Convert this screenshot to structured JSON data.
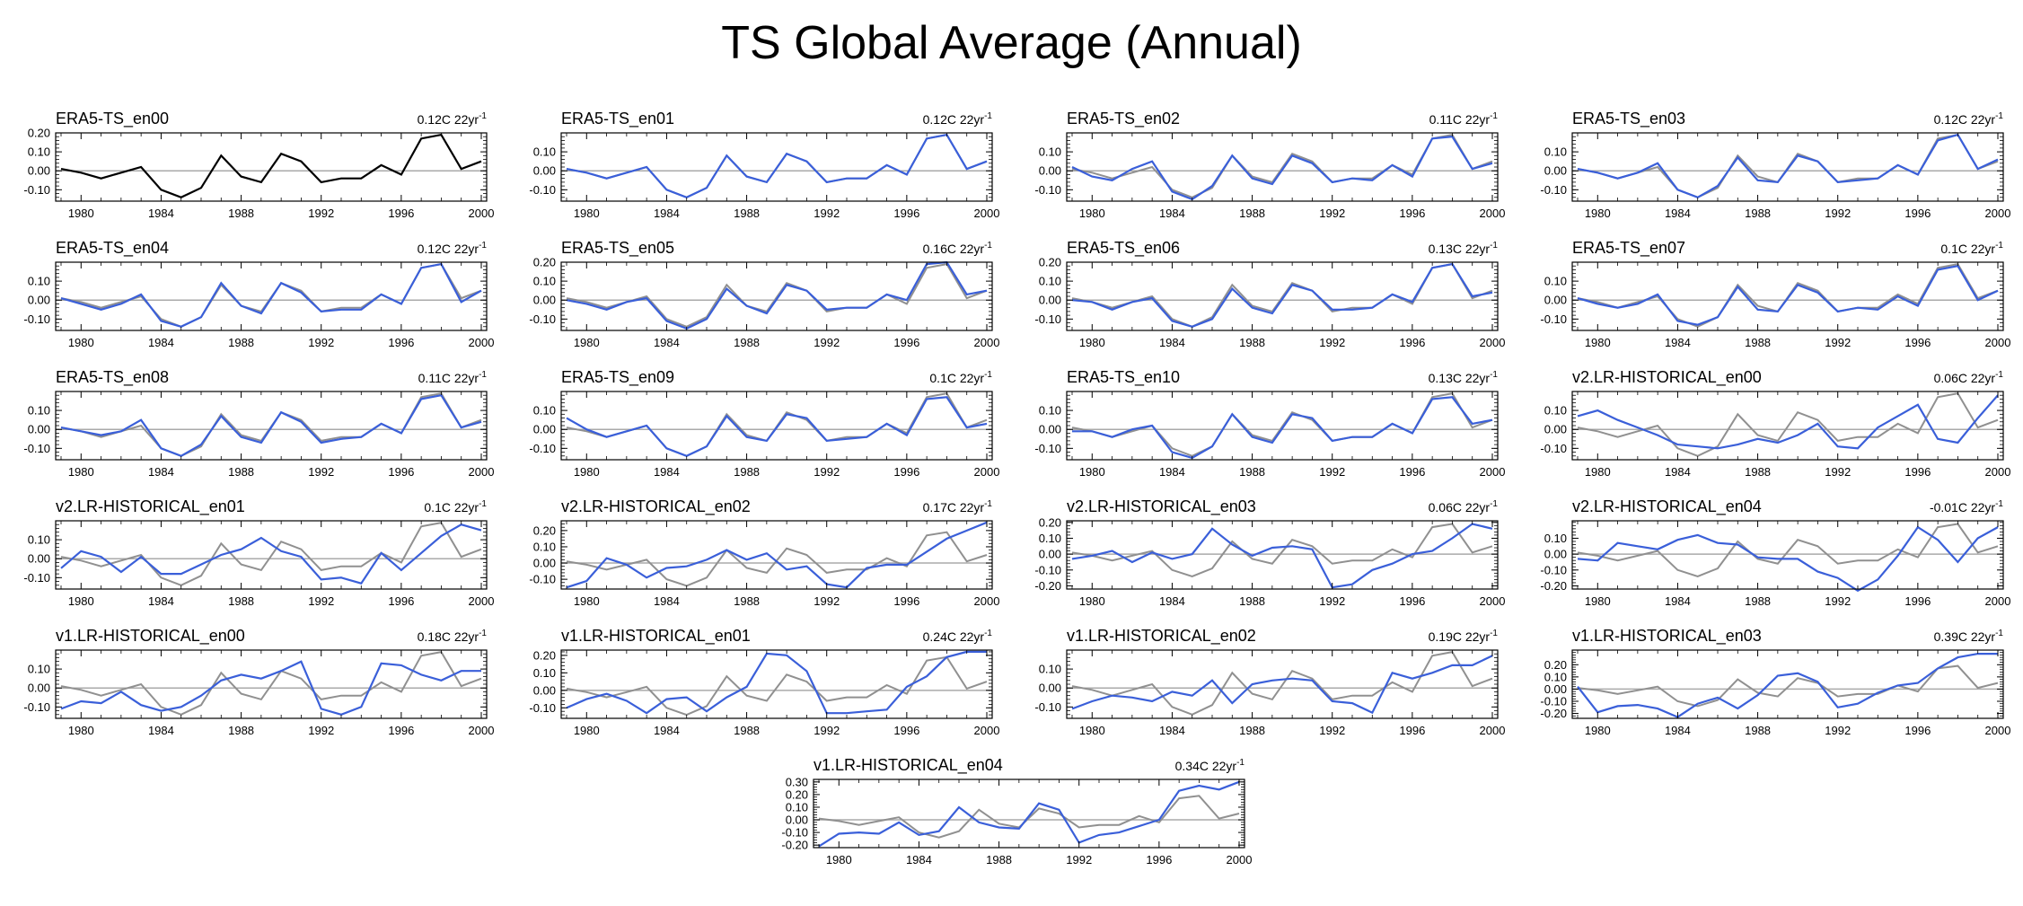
{
  "title": "TS Global Average (Annual)",
  "colors": {
    "reference": "#000000",
    "ensemble": "#3a5fd9",
    "background_ref": "#909090",
    "zero_line": "#aaaaaa"
  },
  "chart_data": {
    "type": "line",
    "xlim": [
      1979,
      2000
    ],
    "years": [
      1979,
      1980,
      1981,
      1982,
      1983,
      1984,
      1985,
      1986,
      1987,
      1988,
      1989,
      1990,
      1991,
      1992,
      1993,
      1994,
      1995,
      1996,
      1997,
      1998,
      1999,
      2000
    ],
    "xticks": [
      "1980",
      "1984",
      "1988",
      "1992",
      "1996",
      "2000"
    ],
    "trend_unit": "22yr",
    "trend_exp": "-1",
    "reference_values": [
      0.01,
      -0.01,
      -0.04,
      -0.01,
      0.02,
      -0.1,
      -0.14,
      -0.09,
      0.08,
      -0.03,
      -0.06,
      0.09,
      0.05,
      -0.06,
      -0.04,
      -0.04,
      0.03,
      -0.02,
      0.17,
      0.19,
      0.01,
      0.05
    ],
    "panels": [
      {
        "name": "ERA5-TS_en00",
        "trend": "0.12C",
        "ylim": [
          -0.16,
          0.2
        ],
        "yticks": [
          -0.1,
          0,
          0.1,
          0.2
        ],
        "values": [
          0.01,
          -0.01,
          -0.04,
          -0.01,
          0.02,
          -0.1,
          -0.14,
          -0.09,
          0.08,
          -0.03,
          -0.06,
          0.09,
          0.05,
          -0.06,
          -0.04,
          -0.04,
          0.03,
          -0.02,
          0.17,
          0.19,
          0.01,
          0.05
        ],
        "reference": true
      },
      {
        "name": "ERA5-TS_en01",
        "trend": "0.12C",
        "ylim": [
          -0.16,
          0.2
        ],
        "yticks": [
          -0.1,
          0,
          0.1
        ],
        "values": [
          0.01,
          -0.01,
          -0.04,
          -0.01,
          0.02,
          -0.1,
          -0.14,
          -0.09,
          0.08,
          -0.03,
          -0.06,
          0.09,
          0.05,
          -0.06,
          -0.04,
          -0.04,
          0.03,
          -0.02,
          0.17,
          0.19,
          0.01,
          0.05
        ]
      },
      {
        "name": "ERA5-TS_en02",
        "trend": "0.11C",
        "ylim": [
          -0.16,
          0.2
        ],
        "yticks": [
          -0.1,
          0,
          0.1
        ],
        "values": [
          0.02,
          -0.03,
          -0.05,
          0.01,
          0.05,
          -0.11,
          -0.15,
          -0.08,
          0.08,
          -0.04,
          -0.07,
          0.08,
          0.04,
          -0.06,
          -0.04,
          -0.05,
          0.03,
          -0.03,
          0.17,
          0.18,
          0.01,
          0.04
        ]
      },
      {
        "name": "ERA5-TS_en03",
        "trend": "0.12C",
        "ylim": [
          -0.16,
          0.2
        ],
        "yticks": [
          -0.1,
          0,
          0.1
        ],
        "values": [
          0.01,
          -0.01,
          -0.04,
          -0.01,
          0.04,
          -0.1,
          -0.14,
          -0.08,
          0.07,
          -0.05,
          -0.06,
          0.08,
          0.05,
          -0.06,
          -0.05,
          -0.04,
          0.03,
          -0.02,
          0.16,
          0.19,
          0.01,
          0.06
        ]
      },
      {
        "name": "ERA5-TS_en04",
        "trend": "0.12C",
        "ylim": [
          -0.16,
          0.2
        ],
        "yticks": [
          -0.1,
          0,
          0.1
        ],
        "values": [
          0.01,
          -0.02,
          -0.05,
          -0.02,
          0.03,
          -0.11,
          -0.14,
          -0.09,
          0.09,
          -0.03,
          -0.07,
          0.09,
          0.04,
          -0.06,
          -0.05,
          -0.05,
          0.03,
          -0.02,
          0.17,
          0.19,
          -0.01,
          0.05
        ]
      },
      {
        "name": "ERA5-TS_en05",
        "trend": "0.16C",
        "ylim": [
          -0.16,
          0.2
        ],
        "yticks": [
          -0.1,
          0,
          0.1,
          0.2
        ],
        "values": [
          0.0,
          -0.02,
          -0.05,
          -0.01,
          0.01,
          -0.11,
          -0.15,
          -0.1,
          0.06,
          -0.03,
          -0.07,
          0.08,
          0.05,
          -0.05,
          -0.04,
          -0.04,
          0.03,
          0.0,
          0.19,
          0.2,
          0.03,
          0.05
        ]
      },
      {
        "name": "ERA5-TS_en06",
        "trend": "0.13C",
        "ylim": [
          -0.16,
          0.2
        ],
        "yticks": [
          -0.1,
          0,
          0.1,
          0.2
        ],
        "values": [
          0.0,
          -0.01,
          -0.05,
          -0.01,
          0.01,
          -0.11,
          -0.14,
          -0.1,
          0.06,
          -0.04,
          -0.07,
          0.08,
          0.05,
          -0.05,
          -0.05,
          -0.04,
          0.03,
          -0.01,
          0.17,
          0.19,
          0.02,
          0.04
        ]
      },
      {
        "name": "ERA5-TS_en07",
        "trend": "0.1C",
        "ylim": [
          -0.16,
          0.2
        ],
        "yticks": [
          -0.1,
          0,
          0.1
        ],
        "values": [
          0.01,
          -0.02,
          -0.04,
          -0.02,
          0.03,
          -0.11,
          -0.13,
          -0.09,
          0.07,
          -0.05,
          -0.06,
          0.08,
          0.04,
          -0.06,
          -0.04,
          -0.05,
          0.02,
          -0.03,
          0.16,
          0.18,
          0.0,
          0.05
        ]
      },
      {
        "name": "ERA5-TS_en08",
        "trend": "0.11C",
        "ylim": [
          -0.16,
          0.2
        ],
        "yticks": [
          -0.1,
          0,
          0.1
        ],
        "values": [
          0.01,
          -0.01,
          -0.03,
          -0.01,
          0.05,
          -0.1,
          -0.14,
          -0.08,
          0.07,
          -0.04,
          -0.07,
          0.09,
          0.04,
          -0.07,
          -0.05,
          -0.04,
          0.03,
          -0.02,
          0.16,
          0.18,
          0.01,
          0.04
        ]
      },
      {
        "name": "ERA5-TS_en09",
        "trend": "0.1C",
        "ylim": [
          -0.16,
          0.2
        ],
        "yticks": [
          -0.1,
          0,
          0.1
        ],
        "values": [
          0.06,
          0.0,
          -0.04,
          -0.01,
          0.02,
          -0.1,
          -0.14,
          -0.09,
          0.07,
          -0.04,
          -0.06,
          0.08,
          0.06,
          -0.06,
          -0.05,
          -0.04,
          0.03,
          -0.03,
          0.16,
          0.17,
          0.01,
          0.03
        ]
      },
      {
        "name": "ERA5-TS_en10",
        "trend": "0.13C",
        "ylim": [
          -0.16,
          0.2
        ],
        "yticks": [
          -0.1,
          0,
          0.1
        ],
        "values": [
          -0.01,
          -0.01,
          -0.04,
          0.0,
          0.02,
          -0.12,
          -0.15,
          -0.09,
          0.08,
          -0.04,
          -0.07,
          0.08,
          0.06,
          -0.06,
          -0.04,
          -0.04,
          0.03,
          -0.02,
          0.16,
          0.17,
          0.03,
          0.05
        ]
      },
      {
        "name": "v2.LR-HISTORICAL_en00",
        "trend": "0.06C",
        "ylim": [
          -0.16,
          0.2
        ],
        "yticks": [
          -0.1,
          0,
          0.1
        ],
        "values": [
          0.07,
          0.1,
          0.05,
          0.01,
          -0.03,
          -0.08,
          -0.09,
          -0.1,
          -0.08,
          -0.05,
          -0.07,
          -0.03,
          0.03,
          -0.09,
          -0.1,
          0.01,
          0.07,
          0.13,
          -0.05,
          -0.07,
          0.06,
          0.18
        ]
      },
      {
        "name": "v2.LR-HISTORICAL_en01",
        "trend": "0.1C",
        "ylim": [
          -0.16,
          0.2
        ],
        "yticks": [
          -0.1,
          0,
          0.1
        ],
        "values": [
          -0.05,
          0.04,
          0.01,
          -0.07,
          0.01,
          -0.08,
          -0.08,
          -0.03,
          0.02,
          0.05,
          0.11,
          0.04,
          0.01,
          -0.11,
          -0.1,
          -0.13,
          0.03,
          -0.06,
          0.03,
          0.12,
          0.18,
          0.15
        ]
      },
      {
        "name": "v2.LR-HISTORICAL_en02",
        "trend": "0.17C",
        "ylim": [
          -0.16,
          0.26
        ],
        "yticks": [
          -0.1,
          0,
          0.1,
          0.2
        ],
        "values": [
          -0.15,
          -0.11,
          0.03,
          -0.01,
          -0.09,
          -0.03,
          -0.02,
          0.02,
          0.08,
          0.02,
          0.06,
          -0.04,
          -0.02,
          -0.13,
          -0.15,
          -0.03,
          -0.01,
          -0.01,
          0.07,
          0.15,
          0.2,
          0.25
        ]
      },
      {
        "name": "v2.LR-HISTORICAL_en03",
        "trend": "0.06C",
        "ylim": [
          -0.22,
          0.21
        ],
        "yticks": [
          -0.2,
          -0.1,
          0,
          0.1,
          0.2
        ],
        "values": [
          -0.03,
          -0.01,
          0.02,
          -0.05,
          0.01,
          -0.03,
          0.0,
          0.16,
          0.06,
          -0.01,
          0.04,
          0.05,
          0.03,
          -0.21,
          -0.19,
          -0.1,
          -0.06,
          0.0,
          0.02,
          0.1,
          0.19,
          0.16
        ]
      },
      {
        "name": "v2.LR-HISTORICAL_en04",
        "trend": "-0.01C",
        "ylim": [
          -0.22,
          0.21
        ],
        "yticks": [
          -0.2,
          -0.1,
          0,
          0.1
        ],
        "values": [
          -0.03,
          -0.04,
          0.07,
          0.05,
          0.03,
          0.09,
          0.12,
          0.07,
          0.06,
          -0.02,
          -0.03,
          -0.03,
          -0.11,
          -0.15,
          -0.23,
          -0.16,
          -0.01,
          0.17,
          0.09,
          -0.05,
          0.1,
          0.17
        ]
      },
      {
        "name": "v1.LR-HISTORICAL_en00",
        "trend": "0.18C",
        "ylim": [
          -0.16,
          0.2
        ],
        "yticks": [
          -0.1,
          0,
          0.1
        ],
        "values": [
          -0.11,
          -0.07,
          -0.08,
          -0.02,
          -0.09,
          -0.12,
          -0.1,
          -0.04,
          0.04,
          0.07,
          0.05,
          0.09,
          0.14,
          -0.11,
          -0.14,
          -0.1,
          0.13,
          0.12,
          0.07,
          0.04,
          0.09,
          0.09
        ]
      },
      {
        "name": "v1.LR-HISTORICAL_en01",
        "trend": "0.24C",
        "ylim": [
          -0.16,
          0.23
        ],
        "yticks": [
          -0.1,
          0,
          0.1,
          0.2
        ],
        "values": [
          -0.1,
          -0.05,
          -0.02,
          -0.06,
          -0.13,
          -0.05,
          -0.04,
          -0.12,
          -0.04,
          0.02,
          0.21,
          0.2,
          0.11,
          -0.13,
          -0.13,
          -0.12,
          -0.11,
          0.02,
          0.08,
          0.19,
          0.22,
          0.22
        ]
      },
      {
        "name": "v1.LR-HISTORICAL_en02",
        "trend": "0.19C",
        "ylim": [
          -0.16,
          0.2
        ],
        "yticks": [
          -0.1,
          0,
          0.1
        ],
        "values": [
          -0.11,
          -0.07,
          -0.04,
          -0.05,
          -0.07,
          -0.02,
          -0.04,
          0.04,
          -0.08,
          0.02,
          0.04,
          0.05,
          0.04,
          -0.07,
          -0.08,
          -0.13,
          0.08,
          0.05,
          0.08,
          0.12,
          0.12,
          0.17
        ]
      },
      {
        "name": "v1.LR-HISTORICAL_en03",
        "trend": "0.39C",
        "ylim": [
          -0.24,
          0.32
        ],
        "yticks": [
          -0.2,
          -0.1,
          0,
          0.1,
          0.2
        ],
        "values": [
          0.02,
          -0.19,
          -0.14,
          -0.13,
          -0.16,
          -0.23,
          -0.12,
          -0.07,
          -0.16,
          -0.05,
          0.11,
          0.13,
          0.06,
          -0.15,
          -0.12,
          -0.03,
          0.03,
          0.05,
          0.17,
          0.26,
          0.29,
          0.29
        ]
      },
      {
        "name": "v1.LR-HISTORICAL_en04",
        "trend": "0.34C",
        "ylim": [
          -0.22,
          0.32
        ],
        "yticks": [
          -0.2,
          -0.1,
          0,
          0.1,
          0.2,
          0.3
        ],
        "values": [
          -0.21,
          -0.11,
          -0.1,
          -0.11,
          -0.02,
          -0.12,
          -0.09,
          0.1,
          -0.02,
          -0.06,
          -0.07,
          0.13,
          0.08,
          -0.18,
          -0.12,
          -0.1,
          -0.05,
          0.0,
          0.23,
          0.27,
          0.24,
          0.3
        ]
      }
    ]
  }
}
